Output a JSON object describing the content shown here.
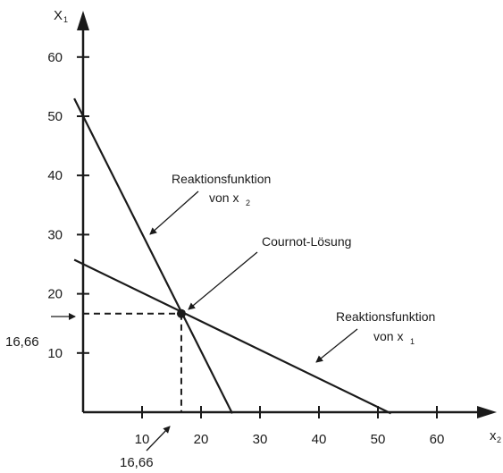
{
  "chart_data": {
    "type": "line",
    "title": "",
    "xlabel": "x",
    "xlabel_sub": "2",
    "ylabel": "X",
    "ylabel_sub": "1",
    "xlim": [
      0,
      68
    ],
    "ylim": [
      0,
      66
    ],
    "xticks": [
      "10",
      "20",
      "30",
      "40",
      "50",
      "60"
    ],
    "yticks": [
      "10",
      "20",
      "30",
      "40",
      "50",
      "60"
    ],
    "grid": false,
    "legend": "none",
    "series": [
      {
        "name": "Reaktionsfunktion von x2",
        "x": [
          0,
          25
        ],
        "y": [
          50,
          0
        ]
      },
      {
        "name": "Reaktionsfunktion von x1",
        "x": [
          0,
          50
        ],
        "y": [
          25,
          0
        ]
      }
    ],
    "equilibrium": {
      "label": "Cournot-Lösung",
      "x": 16.66,
      "y": 16.66
    },
    "annotations": {
      "reaction_x2_line1": "Reaktionsfunktion",
      "reaction_x2_line2": "von x",
      "reaction_x2_sub": "2",
      "reaction_x1_line1": "Reaktionsfunktion",
      "reaction_x1_line2": "von x",
      "reaction_x1_sub": "1",
      "cournot": "Cournot-Lösung",
      "x_value_label": "16,66",
      "y_value_label": "16,66"
    }
  }
}
